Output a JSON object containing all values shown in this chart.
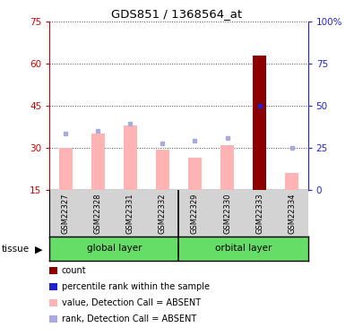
{
  "title": "GDS851 / 1368564_at",
  "samples": [
    "GSM22327",
    "GSM22328",
    "GSM22331",
    "GSM22332",
    "GSM22329",
    "GSM22330",
    "GSM22333",
    "GSM22334"
  ],
  "groups": {
    "global layer": [
      0,
      1,
      2,
      3
    ],
    "orbital layer": [
      4,
      5,
      6,
      7
    ]
  },
  "value_bars": [
    30.0,
    35.0,
    38.0,
    29.5,
    26.5,
    31.0,
    63.0,
    21.0
  ],
  "rank_dots": [
    35.0,
    36.0,
    38.5,
    31.5,
    32.5,
    33.5,
    45.0,
    30.0
  ],
  "left_ylim": [
    15,
    75
  ],
  "left_yticks": [
    15,
    30,
    45,
    60,
    75
  ],
  "right_ylim": [
    0,
    100
  ],
  "right_yticks": [
    0,
    25,
    50,
    75,
    100
  ],
  "right_yticklabels": [
    "0",
    "25",
    "50",
    "75",
    "100%"
  ],
  "bar_color_absent": "#FFB3B3",
  "bar_color_present": "#8B0000",
  "dot_color_absent": "#AAAADD",
  "dot_color_present": "#2222CC",
  "left_ylabel_color": "#CC0000",
  "right_ylabel_color": "#2222CC",
  "absent_samples": [
    0,
    1,
    2,
    3,
    4,
    5,
    7
  ],
  "present_samples": [
    6
  ]
}
